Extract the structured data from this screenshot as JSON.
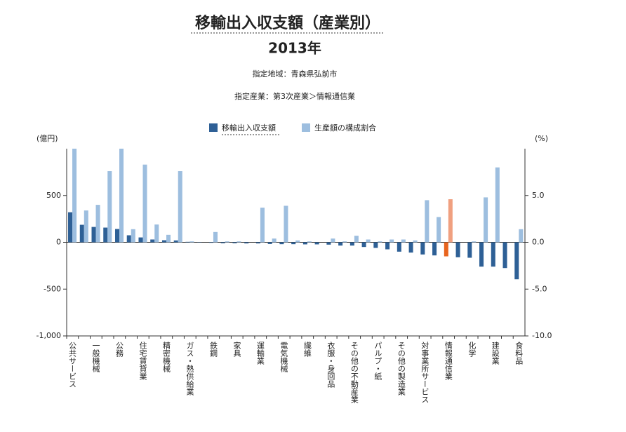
{
  "chart_data": {
    "type": "bar",
    "title": "移輸出入収支額（産業別）",
    "subtitle": "2013年",
    "region": "指定地域：青森県弘前市",
    "industry": "指定産業：第3次産業＞情報通信業",
    "y_label": "(億円)",
    "y2_label": "(%)",
    "categories": [
      "公共サービス",
      null,
      "一般機械",
      null,
      "公務",
      null,
      "住宅賃貸業",
      null,
      "精密機械",
      null,
      "ガス・熱供給業",
      null,
      "鉄鋼",
      null,
      "家具",
      null,
      "運輸業",
      null,
      "電気機械",
      null,
      "繊維",
      null,
      "衣服・身回品",
      null,
      "その他の不動産業",
      null,
      "パルプ・紙",
      null,
      "その他の製造業",
      null,
      "対事業所サービス",
      null,
      "情報通信業",
      null,
      "化学",
      null,
      "建設業",
      null,
      "食料品"
    ],
    "highlight_index": 32,
    "series": [
      {
        "name": "移輸出入収支額",
        "color": "#2e6096",
        "highlight_color": "#e8641e",
        "values": [
          321,
          187,
          164,
          157,
          142,
          75,
          52,
          30,
          22,
          20,
          5,
          -3,
          -5,
          -10,
          -10,
          -12,
          -12,
          -18,
          -20,
          -20,
          -22,
          -22,
          -25,
          -35,
          -35,
          -50,
          -60,
          -75,
          -100,
          -110,
          -130,
          -140,
          -150,
          -160,
          -165,
          -260,
          -260,
          -275,
          -395
        ]
      },
      {
        "name": "生産額の構成割合",
        "color": "#9dbedf",
        "highlight_color": "#f0a080",
        "axis": "y2",
        "values": [
          10.0,
          3.4,
          4.0,
          7.6,
          10.0,
          1.4,
          8.3,
          1.9,
          0.8,
          7.6,
          0.1,
          0,
          1.1,
          0.1,
          0.1,
          0,
          3.7,
          0.4,
          3.9,
          0.2,
          0.1,
          0,
          0.4,
          0.1,
          0.7,
          0.3,
          0.1,
          0.3,
          0.3,
          0.2,
          4.5,
          2.7,
          4.6,
          0,
          0.1,
          4.8,
          8.0,
          0,
          1.4
        ]
      }
    ],
    "ylim": [
      -1000,
      1000
    ],
    "yticks": [
      {
        "value": -1000,
        "label": "-1,000"
      },
      -500,
      0,
      500
    ],
    "y2lim": [
      -10,
      10
    ],
    "y2ticks": [
      {
        "value": -10,
        "label": "-10.0"
      },
      {
        "value": -5,
        "label": "-5.0"
      },
      {
        "value": 0,
        "label": "0.0"
      },
      {
        "value": 5,
        "label": "5.0"
      }
    ]
  }
}
